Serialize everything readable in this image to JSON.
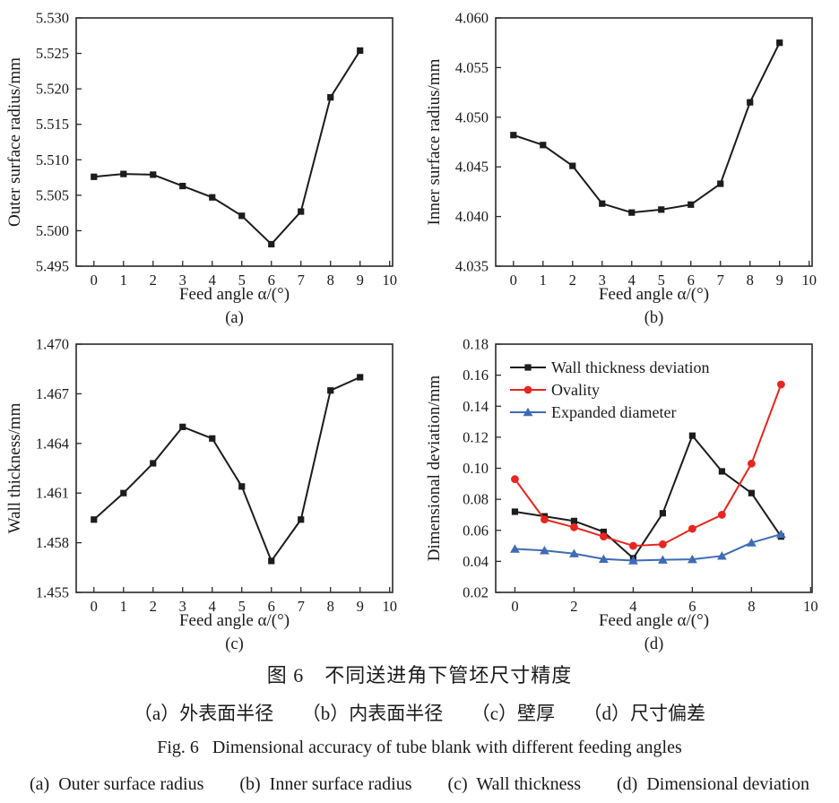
{
  "page": {
    "background": "#ffffff",
    "text_color": "#1a1a1a",
    "axis_color": "#2a2a2a"
  },
  "captions": {
    "cn_title": "图 6　不同送进角下管坯尺寸精度",
    "cn_items": "（a）外表面半径　　（b）内表面半径　　（c）壁厚　　（d）尺寸偏差",
    "en_title": "Fig. 6   Dimensional accuracy of tube blank with different feeding angles",
    "en_items": "(a)  Outer surface radius　　(b)  Inner surface radius　　(c)  Wall thickness　　(d)  Dimensional deviation"
  },
  "chart_data": [
    {
      "id": "a",
      "type": "line",
      "sublabel": "(a)",
      "xlabel": "Feed angle  α/(°)",
      "ylabel": "Outer surface radius/mm",
      "x": [
        0,
        1,
        2,
        3,
        4,
        5,
        6,
        7,
        8,
        9
      ],
      "xticks": [
        0,
        1,
        2,
        3,
        4,
        5,
        6,
        7,
        8,
        9,
        10
      ],
      "xlim": [
        -0.6,
        10.1
      ],
      "ylim": [
        5.495,
        5.53
      ],
      "yticks": [
        5.495,
        5.5,
        5.505,
        5.51,
        5.515,
        5.52,
        5.525,
        5.53
      ],
      "ytick_decimals": 3,
      "grid": false,
      "legend": false,
      "series": [
        {
          "name": "Outer surface radius",
          "color": "#1c1c1c",
          "marker": "square",
          "values": [
            5.5076,
            5.508,
            5.5079,
            5.5063,
            5.5047,
            5.5021,
            5.4981,
            5.5027,
            5.5188,
            5.5254
          ]
        }
      ]
    },
    {
      "id": "b",
      "type": "line",
      "sublabel": "(b)",
      "xlabel": "Feed angle  α/(°)",
      "ylabel": "Inner surface radius/mm",
      "x": [
        0,
        1,
        2,
        3,
        4,
        5,
        6,
        7,
        8,
        9
      ],
      "xticks": [
        0,
        1,
        2,
        3,
        4,
        5,
        6,
        7,
        8,
        9,
        10
      ],
      "xlim": [
        -0.6,
        10.1
      ],
      "ylim": [
        4.035,
        4.06
      ],
      "yticks": [
        4.035,
        4.04,
        4.045,
        4.05,
        4.055,
        4.06
      ],
      "ytick_decimals": 3,
      "grid": false,
      "legend": false,
      "series": [
        {
          "name": "Inner surface radius",
          "color": "#1c1c1c",
          "marker": "square",
          "values": [
            4.0482,
            4.0472,
            4.0451,
            4.0413,
            4.0404,
            4.0407,
            4.0412,
            4.0433,
            4.0515,
            4.0575
          ]
        }
      ]
    },
    {
      "id": "c",
      "type": "line",
      "sublabel": "(c)",
      "xlabel": "Feed angle  α/(°)",
      "ylabel": "Wall thickness/mm",
      "x": [
        0,
        1,
        2,
        3,
        4,
        5,
        6,
        7,
        8,
        9
      ],
      "xticks": [
        0,
        1,
        2,
        3,
        4,
        5,
        6,
        7,
        8,
        9,
        10
      ],
      "xlim": [
        -0.6,
        10.1
      ],
      "ylim": [
        1.455,
        1.47
      ],
      "yticks": [
        1.455,
        1.458,
        1.461,
        1.464,
        1.467,
        1.47
      ],
      "ytick_decimals": 3,
      "grid": false,
      "legend": false,
      "series": [
        {
          "name": "Wall thickness",
          "color": "#1c1c1c",
          "marker": "square",
          "values": [
            1.4594,
            1.461,
            1.4628,
            1.465,
            1.4643,
            1.4614,
            1.4569,
            1.4594,
            1.4672,
            1.468
          ]
        }
      ]
    },
    {
      "id": "d",
      "type": "line",
      "sublabel": "(d)",
      "xlabel": "Feed angle  α/(°)",
      "ylabel": "Dimensional deviation/mm",
      "x": [
        0,
        1,
        2,
        3,
        4,
        5,
        6,
        7,
        8,
        9
      ],
      "xticks": [
        0,
        2,
        4,
        6,
        8,
        10
      ],
      "xlim": [
        -0.65,
        10.05
      ],
      "ylim": [
        0.02,
        0.18
      ],
      "yticks": [
        0.02,
        0.04,
        0.06,
        0.08,
        0.1,
        0.12,
        0.14,
        0.16,
        0.18
      ],
      "ytick_decimals": 2,
      "grid": false,
      "legend": true,
      "legend_position": "top-left",
      "series": [
        {
          "name": "Wall thickness deviation",
          "color": "#1c1c1c",
          "marker": "square",
          "values": [
            0.072,
            0.069,
            0.066,
            0.059,
            0.042,
            0.071,
            0.121,
            0.098,
            0.084,
            0.056
          ]
        },
        {
          "name": "Ovality",
          "color": "#e8261f",
          "marker": "circle",
          "values": [
            0.093,
            0.067,
            0.062,
            0.056,
            0.05,
            0.051,
            0.061,
            0.07,
            0.103,
            0.154
          ]
        },
        {
          "name": "Expanded diameter",
          "color": "#3f6bb6",
          "marker": "triangle",
          "values": [
            0.048,
            0.047,
            0.045,
            0.0415,
            0.0405,
            0.041,
            0.0413,
            0.0435,
            0.052,
            0.0575
          ]
        }
      ]
    }
  ]
}
